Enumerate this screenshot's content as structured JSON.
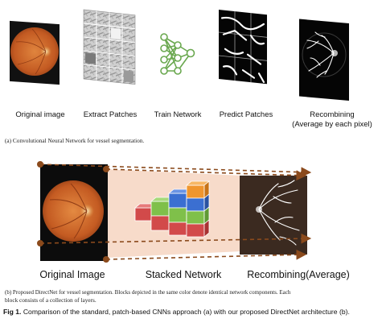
{
  "panel_a": {
    "labels": {
      "original": "Original image",
      "extract": "Extract Patches",
      "train": "Train Network",
      "predict": "Predict Patches",
      "recombine_line1": "Recombining",
      "recombine_line2": "(Average by each pixel)"
    },
    "caption": "(a)  Convolutional Neural Network for vessel segmentation."
  },
  "panel_b": {
    "labels": {
      "original": "Original Image",
      "stacked": "Stacked Network",
      "recombine": "Recombining(Average)"
    },
    "caption_line1": "(b)  Proposed DirectNet for vessel segmentation.  Blocks depicted in the same color denote identical network components.  Each",
    "caption_line2": "block consists of a collection of layers."
  },
  "figure_caption": {
    "prefix": "Fig 1.",
    "text": " Comparison of the standard, patch-based CNNs approach (a) with our proposed DirectNet architecture (b)."
  },
  "colors": {
    "fundus_orange": "#c8632a",
    "arrow_brown": "#8b4a1c",
    "network_green": "#6aa84f",
    "highlight_pink": "#f6d7c4",
    "block_red": "#d24a4a",
    "block_green": "#7fc04a",
    "block_blue": "#3b6fd1",
    "block_orange": "#f0962e"
  }
}
